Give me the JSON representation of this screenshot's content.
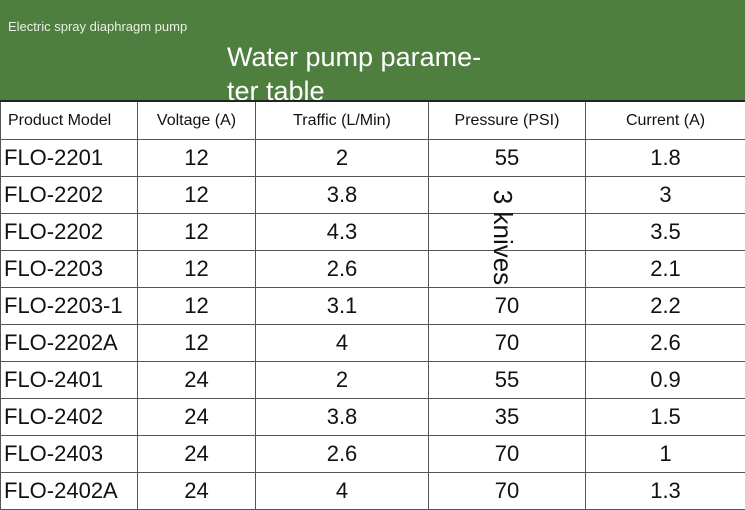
{
  "header": {
    "subtitle": "Electric spray diaphragm pump",
    "title_lines": [
      "Water pump parame-",
      "ter table"
    ]
  },
  "annotation": "3 knives",
  "table": {
    "columns": [
      "Product Model",
      "Voltage (A)",
      "Traffic (L/Min)",
      "Pressure (PSI)",
      "Current (A)"
    ],
    "rows": [
      [
        "FLO-2201",
        "12",
        "2",
        "55",
        "1.8"
      ],
      [
        "FLO-2202",
        "12",
        "3.8",
        "",
        "3"
      ],
      [
        "FLO-2202",
        "12",
        "4.3",
        "",
        "3.5"
      ],
      [
        "FLO-2203",
        "12",
        "2.6",
        "",
        "2.1"
      ],
      [
        "FLO-2203-1",
        "12",
        "3.1",
        "70",
        "2.2"
      ],
      [
        "FLO-2202A",
        "12",
        "4",
        "70",
        "2.6"
      ],
      [
        "FLO-2401",
        "24",
        "2",
        "55",
        "0.9"
      ],
      [
        "FLO-2402",
        "24",
        "3.8",
        "35",
        "1.5"
      ],
      [
        "FLO-2403",
        "24",
        "2.6",
        "70",
        "1"
      ],
      [
        "FLO-2402A",
        "24",
        "4",
        "70",
        "1.3"
      ]
    ]
  }
}
